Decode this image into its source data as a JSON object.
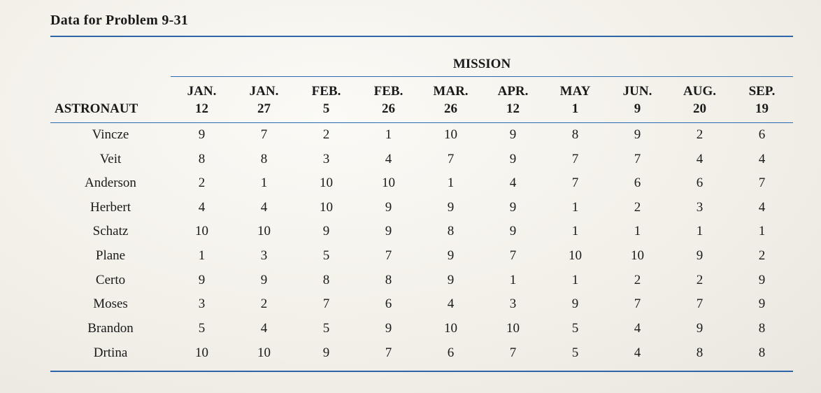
{
  "title": "Data for Problem 9-31",
  "mission_label": "MISSION",
  "rule_color": "#2e64a8",
  "astronaut_header": "ASTRONAUT",
  "columns": [
    {
      "month": "JAN.",
      "day": "12"
    },
    {
      "month": "JAN.",
      "day": "27"
    },
    {
      "month": "FEB.",
      "day": "5"
    },
    {
      "month": "FEB.",
      "day": "26"
    },
    {
      "month": "MAR.",
      "day": "26"
    },
    {
      "month": "APR.",
      "day": "12"
    },
    {
      "month": "MAY",
      "day": "1"
    },
    {
      "month": "JUN.",
      "day": "9"
    },
    {
      "month": "AUG.",
      "day": "20"
    },
    {
      "month": "SEP.",
      "day": "19"
    }
  ],
  "rows": [
    {
      "name": "Vincze",
      "values": [
        9,
        7,
        2,
        1,
        10,
        9,
        8,
        9,
        2,
        6
      ]
    },
    {
      "name": "Veit",
      "values": [
        8,
        8,
        3,
        4,
        7,
        9,
        7,
        7,
        4,
        4
      ]
    },
    {
      "name": "Anderson",
      "values": [
        2,
        1,
        10,
        10,
        1,
        4,
        7,
        6,
        6,
        7
      ]
    },
    {
      "name": "Herbert",
      "values": [
        4,
        4,
        10,
        9,
        9,
        9,
        1,
        2,
        3,
        4
      ]
    },
    {
      "name": "Schatz",
      "values": [
        10,
        10,
        9,
        9,
        8,
        9,
        1,
        1,
        1,
        1
      ]
    },
    {
      "name": "Plane",
      "values": [
        1,
        3,
        5,
        7,
        9,
        7,
        10,
        10,
        9,
        2
      ]
    },
    {
      "name": "Certo",
      "values": [
        9,
        9,
        8,
        8,
        9,
        1,
        1,
        2,
        2,
        9
      ]
    },
    {
      "name": "Moses",
      "values": [
        3,
        2,
        7,
        6,
        4,
        3,
        9,
        7,
        7,
        9
      ]
    },
    {
      "name": "Brandon",
      "values": [
        5,
        4,
        5,
        9,
        10,
        10,
        5,
        4,
        9,
        8
      ]
    },
    {
      "name": "Drtina",
      "values": [
        10,
        10,
        9,
        7,
        6,
        7,
        5,
        4,
        8,
        8
      ]
    }
  ],
  "type": "table",
  "background_color": "#f5f3ee",
  "text_color": "#1a1a1a",
  "font_family": "Times New Roman",
  "title_fontsize": 20,
  "header_fontsize": 19,
  "cell_fontsize": 19
}
